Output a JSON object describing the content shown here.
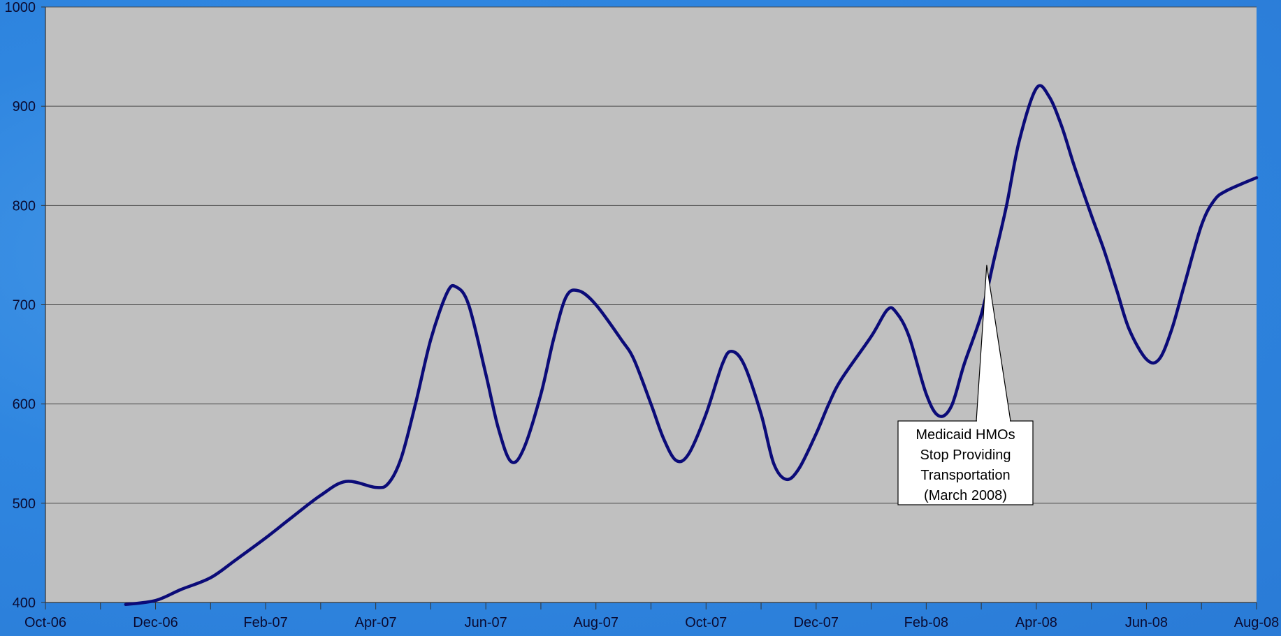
{
  "colors": {
    "background": "#2f86e0",
    "plot_area": "#c0c0c0",
    "gridline": "#4a4a4a",
    "series_line": "#0b0b78",
    "callout_fill": "#ffffff",
    "callout_border": "#000000"
  },
  "chart_data": {
    "type": "line",
    "title": "",
    "xlabel": "",
    "ylabel": "",
    "ylim": [
      400,
      1000
    ],
    "yticks": [
      400,
      500,
      600,
      700,
      800,
      900,
      1000
    ],
    "xlim": [
      "2006-10",
      "2008-08"
    ],
    "xtick_labels": [
      "Oct-06",
      "Dec-06",
      "Feb-07",
      "Apr-07",
      "Jun-07",
      "Aug-07",
      "Oct-07",
      "Dec-07",
      "Feb-08",
      "Apr-08",
      "Jun-08",
      "Aug-08"
    ],
    "grid": "horizontal",
    "legend": "none",
    "series": [
      {
        "values": [
          [
            "2006-11-15",
            398
          ],
          [
            "2006-12-01",
            402
          ],
          [
            "2006-12-15",
            413
          ],
          [
            "2007-01-01",
            425
          ],
          [
            "2007-01-15",
            443
          ],
          [
            "2007-02-01",
            465
          ],
          [
            "2007-02-15",
            485
          ],
          [
            "2007-03-01",
            508
          ],
          [
            "2007-03-15",
            522
          ],
          [
            "2007-04-01",
            516
          ],
          [
            "2007-04-08",
            520
          ],
          [
            "2007-04-15",
            545
          ],
          [
            "2007-04-23",
            600
          ],
          [
            "2007-05-01",
            665
          ],
          [
            "2007-05-10",
            712
          ],
          [
            "2007-05-15",
            718
          ],
          [
            "2007-05-22",
            700
          ],
          [
            "2007-06-01",
            630
          ],
          [
            "2007-06-08",
            575
          ],
          [
            "2007-06-15",
            542
          ],
          [
            "2007-06-22",
            555
          ],
          [
            "2007-07-01",
            610
          ],
          [
            "2007-07-08",
            665
          ],
          [
            "2007-07-15",
            708
          ],
          [
            "2007-07-22",
            714
          ],
          [
            "2007-08-01",
            700
          ],
          [
            "2007-08-15",
            665
          ],
          [
            "2007-08-22",
            645
          ],
          [
            "2007-09-01",
            600
          ],
          [
            "2007-09-08",
            565
          ],
          [
            "2007-09-15",
            543
          ],
          [
            "2007-09-22",
            550
          ],
          [
            "2007-10-01",
            590
          ],
          [
            "2007-10-10",
            640
          ],
          [
            "2007-10-15",
            653
          ],
          [
            "2007-10-22",
            640
          ],
          [
            "2007-11-01",
            590
          ],
          [
            "2007-11-08",
            540
          ],
          [
            "2007-11-15",
            524
          ],
          [
            "2007-11-22",
            535
          ],
          [
            "2007-12-01",
            570
          ],
          [
            "2007-12-08",
            600
          ],
          [
            "2007-12-15",
            625
          ],
          [
            "2008-01-01",
            668
          ],
          [
            "2008-01-10",
            695
          ],
          [
            "2008-01-15",
            692
          ],
          [
            "2008-01-22",
            668
          ],
          [
            "2008-02-01",
            610
          ],
          [
            "2008-02-08",
            588
          ],
          [
            "2008-02-15",
            598
          ],
          [
            "2008-02-22",
            640
          ],
          [
            "2008-03-01",
            690
          ],
          [
            "2008-03-08",
            745
          ],
          [
            "2008-03-15",
            800
          ],
          [
            "2008-03-22",
            865
          ],
          [
            "2008-04-01",
            918
          ],
          [
            "2008-04-08",
            910
          ],
          [
            "2008-04-15",
            880
          ],
          [
            "2008-04-22",
            840
          ],
          [
            "2008-05-01",
            790
          ],
          [
            "2008-05-08",
            755
          ],
          [
            "2008-05-15",
            715
          ],
          [
            "2008-05-22",
            675
          ],
          [
            "2008-06-01",
            645
          ],
          [
            "2008-06-08",
            645
          ],
          [
            "2008-06-15",
            675
          ],
          [
            "2008-06-22",
            720
          ],
          [
            "2008-07-01",
            780
          ],
          [
            "2008-07-08",
            805
          ],
          [
            "2008-07-15",
            815
          ],
          [
            "2008-08-01",
            828
          ]
        ]
      }
    ],
    "annotations": [
      {
        "text_lines": [
          "Medicaid HMOs",
          "Stop Providing",
          "Transportation",
          "(March 2008)"
        ],
        "points_to": [
          "2008-03-04",
          740
        ]
      }
    ]
  }
}
